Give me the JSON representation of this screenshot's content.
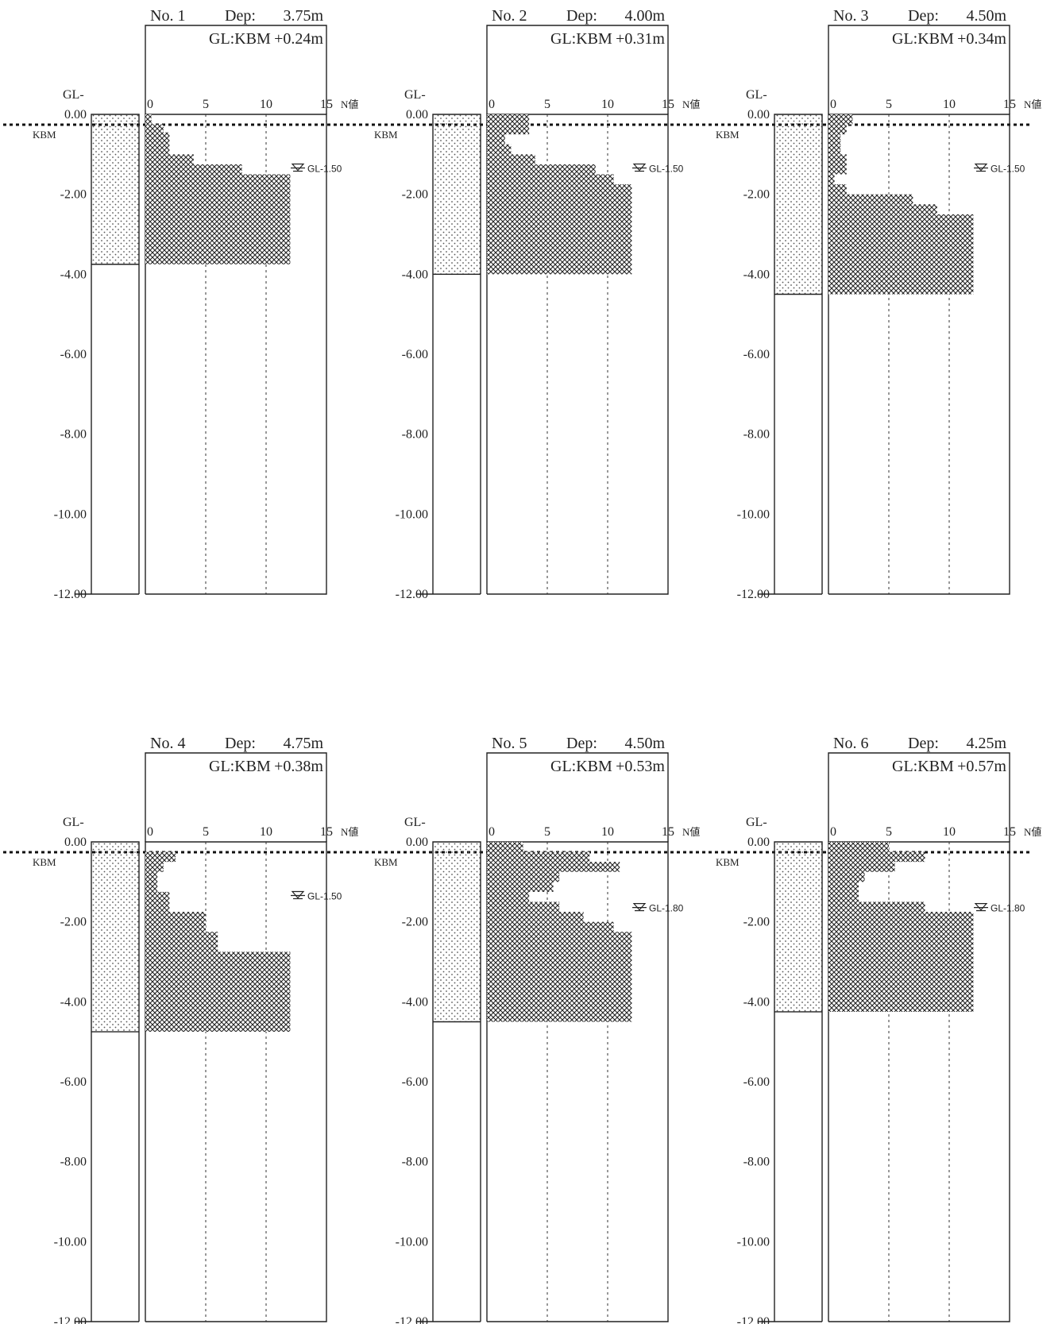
{
  "depth_label": "GL-",
  "kbm_label": "KBM",
  "n_axis_label": "N値",
  "depth_ticks": [
    "0.00",
    "-2.00",
    "-4.00",
    "-6.00",
    "-8.00",
    "-10.00",
    "-12.00"
  ],
  "n_ticks": [
    "0",
    "5",
    "10",
    "15"
  ],
  "chart_data": [
    {
      "type": "bar",
      "no": "No. 1",
      "dep_label": "Dep:",
      "dep": "3.75m",
      "gl_label": "GL:KBM",
      "gl_kbm": "+0.24m",
      "water_level": "GL-1.50",
      "water_depth": 1.5,
      "depth_m": 3.75,
      "ylim": [
        0,
        -12
      ],
      "xlim": [
        0,
        15
      ],
      "profile": [
        [
          0.0,
          0.5
        ],
        [
          0.25,
          1.5
        ],
        [
          0.45,
          2.0
        ],
        [
          0.75,
          2.0
        ],
        [
          1.0,
          4.0
        ],
        [
          1.25,
          8.0
        ],
        [
          1.5,
          12.0
        ],
        [
          3.75,
          12.0
        ]
      ]
    },
    {
      "type": "bar",
      "no": "No. 2",
      "dep_label": "Dep:",
      "dep": "4.00m",
      "gl_label": "GL:KBM",
      "gl_kbm": "+0.31m",
      "water_level": "GL-1.50",
      "water_depth": 1.5,
      "depth_m": 4.0,
      "ylim": [
        0,
        -12
      ],
      "xlim": [
        0,
        15
      ],
      "profile": [
        [
          0.0,
          3.5
        ],
        [
          0.5,
          1.5
        ],
        [
          0.75,
          2.0
        ],
        [
          1.0,
          4.0
        ],
        [
          1.25,
          9.0
        ],
        [
          1.5,
          10.5
        ],
        [
          1.75,
          12.0
        ],
        [
          4.0,
          12.0
        ]
      ]
    },
    {
      "type": "bar",
      "no": "No. 3",
      "dep_label": "Dep:",
      "dep": "4.50m",
      "gl_label": "GL:KBM",
      "gl_kbm": "+0.34m",
      "water_level": "GL-1.50",
      "water_depth": 1.5,
      "depth_m": 4.5,
      "ylim": [
        0,
        -12
      ],
      "xlim": [
        0,
        15
      ],
      "profile": [
        [
          0.0,
          2.0
        ],
        [
          0.25,
          1.5
        ],
        [
          0.5,
          1.0
        ],
        [
          1.0,
          1.5
        ],
        [
          1.5,
          0.5
        ],
        [
          1.75,
          1.5
        ],
        [
          2.0,
          7.0
        ],
        [
          2.25,
          9.0
        ],
        [
          2.5,
          12.0
        ],
        [
          4.5,
          12.0
        ]
      ]
    },
    {
      "type": "bar",
      "no": "No. 4",
      "dep_label": "Dep:",
      "dep": "4.75m",
      "gl_label": "GL:KBM",
      "gl_kbm": "+0.38m",
      "water_level": "GL-1.50",
      "water_depth": 1.5,
      "depth_m": 4.75,
      "ylim": [
        0,
        -12
      ],
      "xlim": [
        0,
        15
      ],
      "profile": [
        [
          0.25,
          2.5
        ],
        [
          0.5,
          1.5
        ],
        [
          0.75,
          1.0
        ],
        [
          1.25,
          2.0
        ],
        [
          1.75,
          5.0
        ],
        [
          2.25,
          6.0
        ],
        [
          2.75,
          12.0
        ],
        [
          4.75,
          12.0
        ]
      ]
    },
    {
      "type": "bar",
      "no": "No. 5",
      "dep_label": "Dep:",
      "dep": "4.50m",
      "gl_label": "GL:KBM",
      "gl_kbm": "+0.53m",
      "water_level": "GL-1.80",
      "water_depth": 1.8,
      "depth_m": 4.5,
      "ylim": [
        0,
        -12
      ],
      "xlim": [
        0,
        15
      ],
      "profile": [
        [
          0.0,
          3.0
        ],
        [
          0.25,
          8.5
        ],
        [
          0.5,
          11.0
        ],
        [
          0.75,
          6.0
        ],
        [
          1.0,
          5.5
        ],
        [
          1.25,
          3.5
        ],
        [
          1.5,
          6.0
        ],
        [
          1.75,
          8.0
        ],
        [
          2.0,
          10.5
        ],
        [
          2.25,
          12.0
        ],
        [
          4.5,
          12.0
        ]
      ]
    },
    {
      "type": "bar",
      "no": "No. 6",
      "dep_label": "Dep:",
      "dep": "4.25m",
      "gl_label": "GL:KBM",
      "gl_kbm": "+0.57m",
      "water_level": "GL-1.80",
      "water_depth": 1.8,
      "depth_m": 4.25,
      "ylim": [
        0,
        -12
      ],
      "xlim": [
        0,
        15
      ],
      "profile": [
        [
          0.0,
          5.0
        ],
        [
          0.25,
          8.0
        ],
        [
          0.5,
          5.5
        ],
        [
          0.75,
          3.0
        ],
        [
          1.0,
          2.5
        ],
        [
          1.25,
          2.5
        ],
        [
          1.5,
          8.0
        ],
        [
          1.75,
          12.0
        ],
        [
          4.25,
          12.0
        ]
      ]
    }
  ]
}
